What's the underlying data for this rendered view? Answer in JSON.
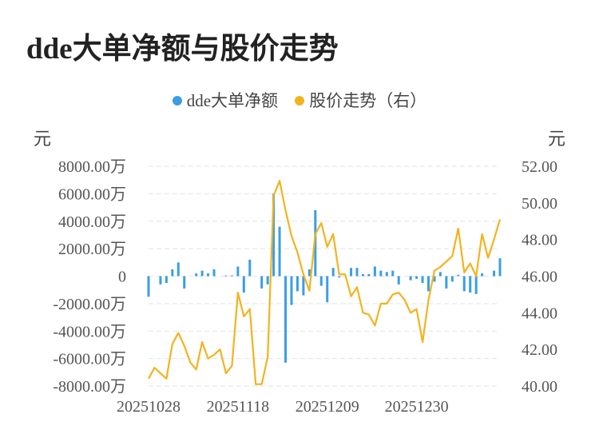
{
  "page_title": "dde大单净额与股价走势",
  "legend": {
    "series1": "dde大单净额",
    "series2": "股价走势（右）"
  },
  "units": {
    "left": "元",
    "right": "元"
  },
  "colors": {
    "bar": "#3a9ee4",
    "line": "#f2b31e",
    "grid": "#e3e3e3"
  },
  "chart_data": {
    "type": "bar+line",
    "title": "dde大单净额与股价走势",
    "x_tick_labels": [
      "20251028",
      "20251118",
      "20251209",
      "20251230"
    ],
    "x_tick_index": [
      0,
      15,
      30,
      45
    ],
    "left_axis": {
      "unit": "元",
      "ylim": [
        -8000,
        8000
      ],
      "ticks": [
        8000,
        6000,
        4000,
        2000,
        0,
        -2000,
        -4000,
        -6000,
        -8000
      ],
      "tick_labels": [
        "8000.00万",
        "6000.00万",
        "4000.00万",
        "2000.00万",
        "0",
        "-2000.00万",
        "-4000.00万",
        "-6000.00万",
        "-8000.00万"
      ]
    },
    "right_axis": {
      "unit": "元",
      "ylim": [
        40,
        52
      ],
      "ticks": [
        52,
        50,
        48,
        46,
        44,
        42,
        40
      ],
      "tick_labels": [
        "52.00",
        "50.00",
        "48.00",
        "46.00",
        "44.00",
        "42.00",
        "40.00"
      ]
    },
    "series": [
      {
        "name": "dde大单净额",
        "type": "bar",
        "axis": "left",
        "values": [
          -1500,
          0,
          -600,
          -500,
          500,
          1000,
          -900,
          0,
          200,
          400,
          200,
          500,
          0,
          50,
          50,
          700,
          -1200,
          1200,
          0,
          -900,
          -600,
          6000,
          3600,
          -6300,
          -2100,
          -1100,
          -1400,
          500,
          4800,
          -700,
          -1900,
          600,
          -100,
          0,
          600,
          600,
          150,
          150,
          700,
          400,
          300,
          400,
          -600,
          0,
          -300,
          -200,
          -500,
          -1100,
          -400,
          300,
          -900,
          -400,
          100,
          -1100,
          -1200,
          -1300,
          200,
          0,
          400,
          1300
        ]
      },
      {
        "name": "股价走势（右）",
        "type": "line",
        "axis": "right",
        "values": [
          40.4,
          41.0,
          40.7,
          40.4,
          42.3,
          42.9,
          42.2,
          41.3,
          40.9,
          42.4,
          41.5,
          41.7,
          42.0,
          40.7,
          41.1,
          45.1,
          43.8,
          44.2,
          40.1,
          40.1,
          41.6,
          50.4,
          51.2,
          49.6,
          48.2,
          47.3,
          46.1,
          45.2,
          48.3,
          48.9,
          47.6,
          48.3,
          46.1,
          46.1,
          44.9,
          45.4,
          44.0,
          43.9,
          43.3,
          44.5,
          44.5,
          45.0,
          45.1,
          44.7,
          44.0,
          44.2,
          42.4,
          44.7,
          46.3,
          46.5,
          46.8,
          47.1,
          48.6,
          46.2,
          46.7,
          46.0,
          48.3,
          47.0,
          48.0,
          49.1
        ]
      }
    ]
  }
}
